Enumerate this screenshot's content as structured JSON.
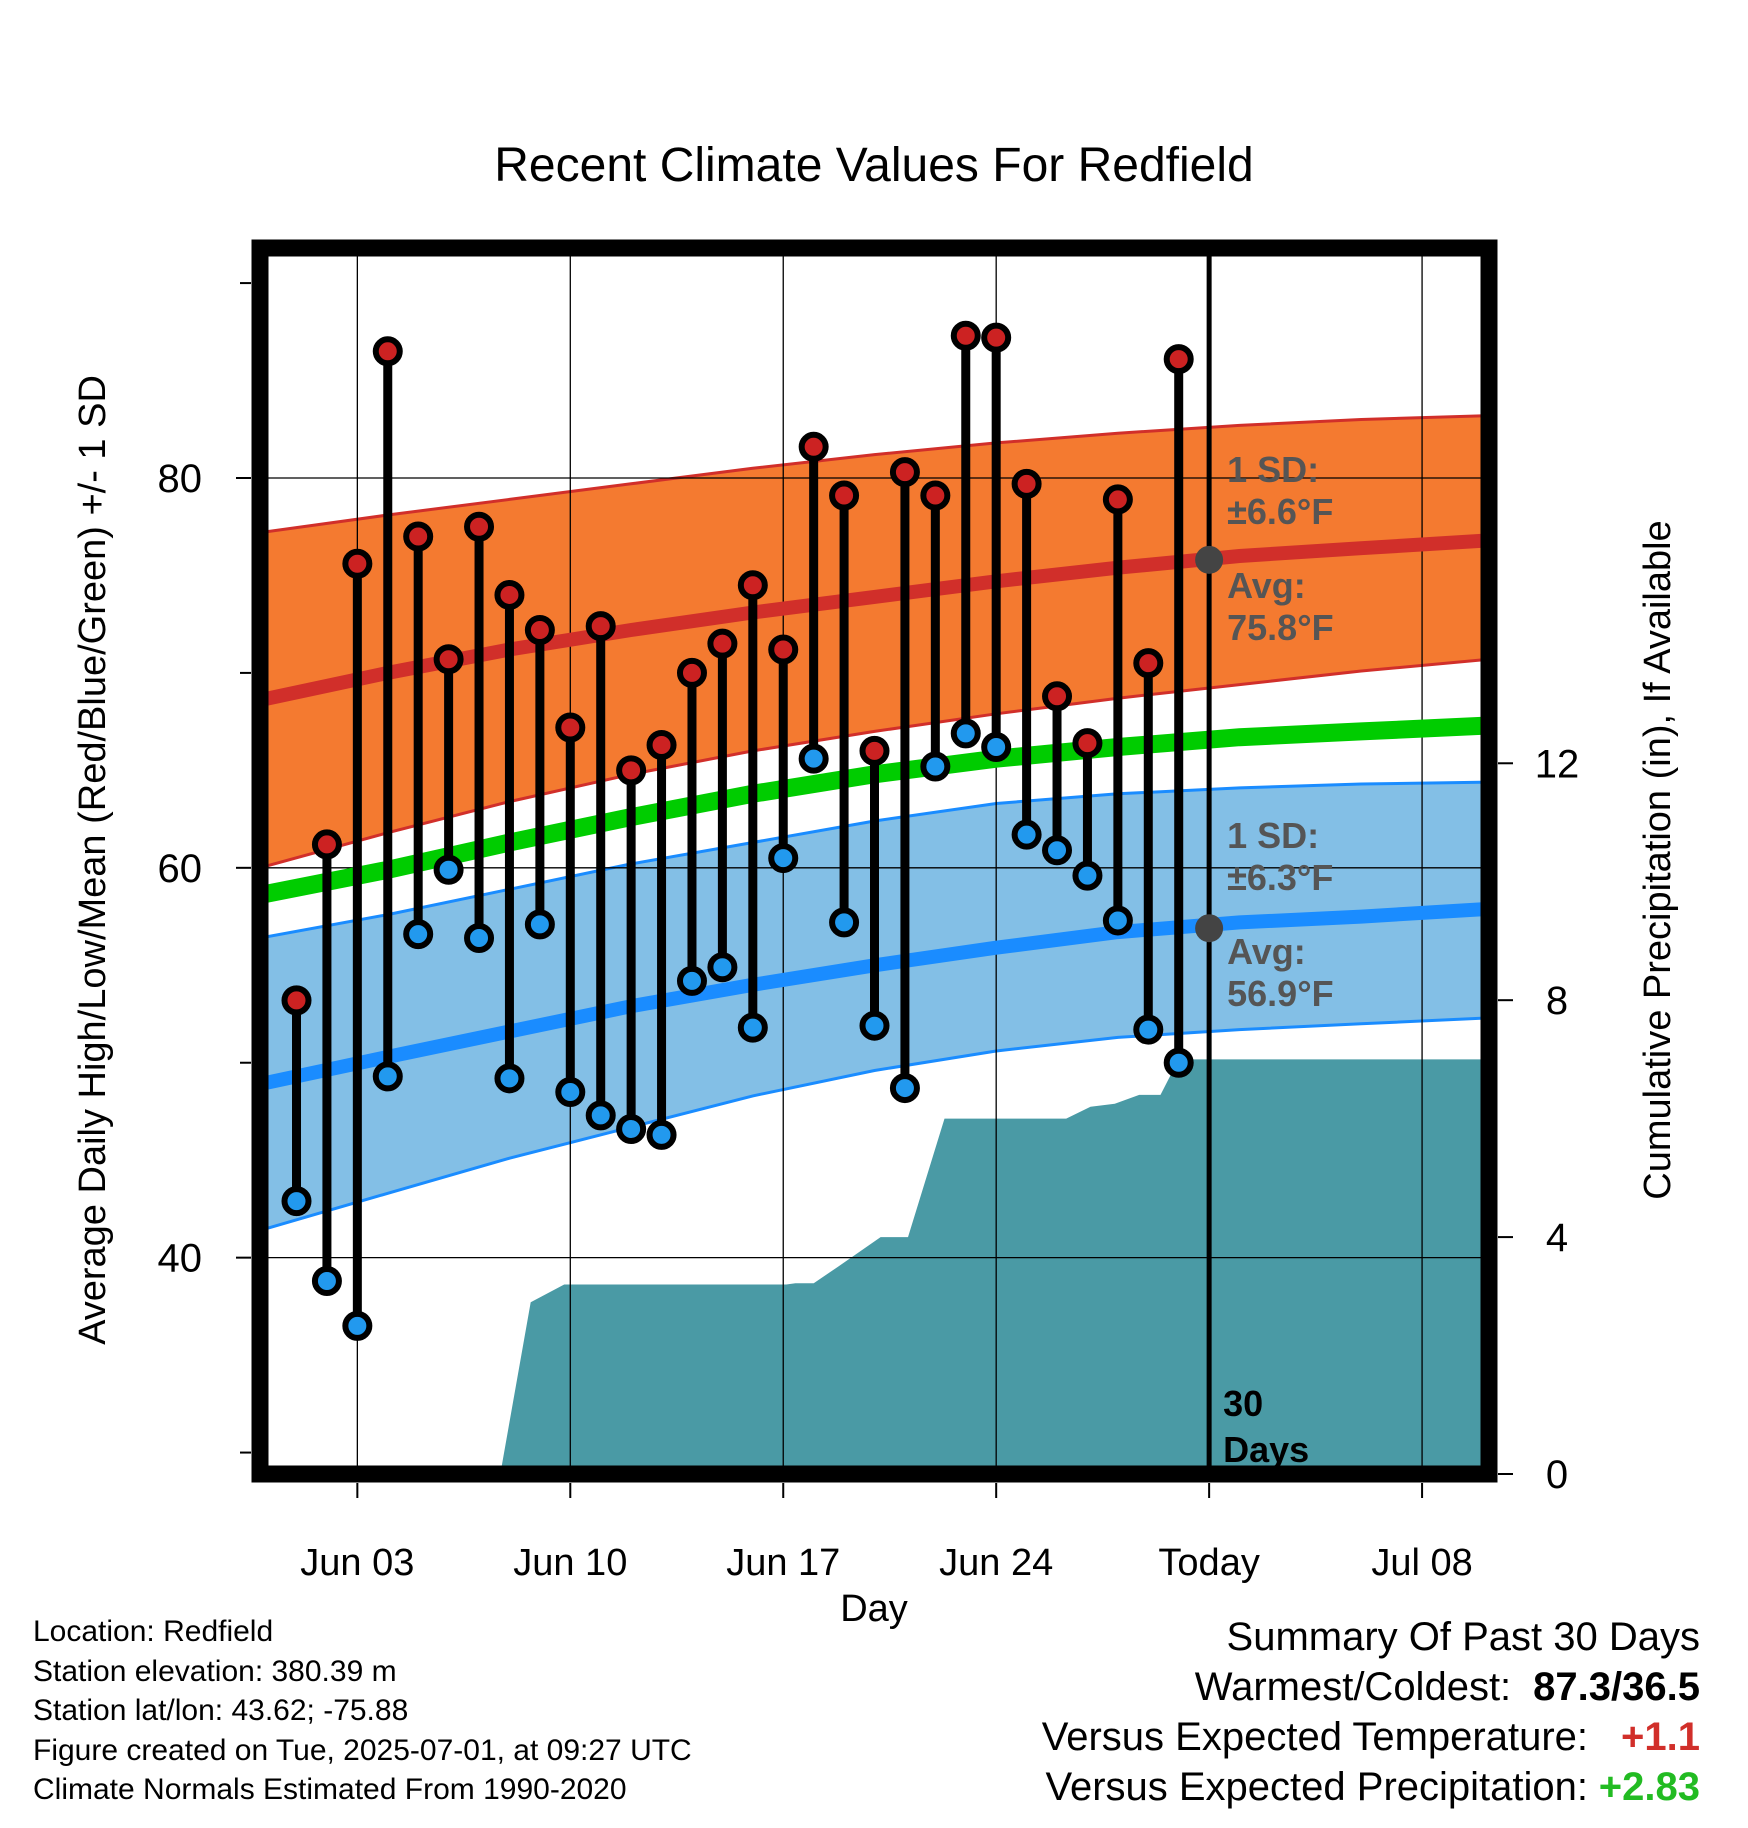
{
  "chart_data": {
    "type": "range-bar",
    "title": "Recent Climate Values For Redfield",
    "xlabel": "Day",
    "ylabel": "Average Daily High/Low/Mean (Red/Blue/Green) +/- 1 SD",
    "y2label": "Cumulative Precipitation (in), If Available",
    "x_tick_labels": [
      "Jun 03",
      "Jun 10",
      "Jun 17",
      "Jun 24",
      "Today",
      "Jul 08"
    ],
    "x_tick_days": [
      3,
      10,
      17,
      24,
      31,
      38
    ],
    "xlim": [
      -0.2,
      40.2
    ],
    "ylim": [
      28.9,
      91.8
    ],
    "y_tick_labels": [
      "40",
      "60",
      "80"
    ],
    "y_ticks": [
      40,
      60,
      80
    ],
    "y_minor_ticks": [
      30,
      50,
      70,
      90
    ],
    "y2lim": [
      0,
      20.7
    ],
    "y2_tick_labels": [
      "0",
      "4",
      "8",
      "12"
    ],
    "y2_ticks": [
      0,
      4,
      8,
      12
    ],
    "grid": true,
    "today_day": 31,
    "today_label": "30\nDays",
    "days": [
      1,
      2,
      3,
      4,
      5,
      6,
      7,
      8,
      9,
      10,
      11,
      12,
      13,
      14,
      15,
      16,
      17,
      18,
      19,
      20,
      21,
      22,
      23,
      24,
      25,
      26,
      27,
      28,
      29,
      30
    ],
    "highs": [
      53.2,
      61.2,
      75.6,
      86.5,
      77.0,
      70.7,
      77.5,
      74.0,
      72.2,
      67.2,
      72.4,
      65.0,
      66.3,
      70.0,
      71.5,
      74.5,
      71.2,
      81.6,
      79.1,
      66.0,
      80.3,
      79.1,
      87.3,
      87.2,
      79.7,
      68.8,
      66.4,
      78.9,
      70.5,
      86.1
    ],
    "lows": [
      42.9,
      38.8,
      36.5,
      49.3,
      56.6,
      59.9,
      56.4,
      49.2,
      57.1,
      48.5,
      47.3,
      46.6,
      46.3,
      54.2,
      54.9,
      51.8,
      60.5,
      65.6,
      57.2,
      51.9,
      48.7,
      65.2,
      66.9,
      66.2,
      61.7,
      60.9,
      59.6,
      57.3,
      51.7,
      50.0
    ],
    "normal_days": [
      -0.2,
      4,
      8,
      12,
      16,
      20,
      24,
      28,
      32,
      36,
      40.2
    ],
    "normal_high": [
      68.6,
      70.0,
      71.2,
      72.2,
      73.1,
      73.9,
      74.7,
      75.4,
      76.0,
      76.4,
      76.8
    ],
    "normal_high_upper": [
      77.2,
      78.1,
      78.9,
      79.7,
      80.5,
      81.2,
      81.8,
      82.3,
      82.7,
      83.0,
      83.2
    ],
    "normal_high_lower": [
      60.0,
      61.8,
      63.4,
      64.8,
      66.0,
      67.0,
      67.9,
      68.7,
      69.4,
      70.1,
      70.7
    ],
    "normal_mean": [
      58.6,
      59.9,
      61.3,
      62.6,
      63.8,
      64.8,
      65.6,
      66.2,
      66.7,
      67.0,
      67.3
    ],
    "normal_low": [
      48.9,
      50.3,
      51.6,
      52.9,
      54.0,
      55.0,
      55.9,
      56.7,
      57.2,
      57.5,
      57.9
    ],
    "normal_low_upper": [
      56.4,
      57.6,
      58.9,
      60.2,
      61.3,
      62.4,
      63.3,
      63.8,
      64.1,
      64.3,
      64.4
    ],
    "normal_low_lower": [
      41.4,
      43.3,
      45.1,
      46.7,
      48.3,
      49.6,
      50.6,
      51.3,
      51.7,
      52.0,
      52.3
    ],
    "precip_days": [
      7.7,
      8.7,
      9.8,
      13,
      17.1,
      17.4,
      18,
      18.8,
      20.2,
      21.1,
      22.3,
      24.0,
      25.1,
      26.3,
      27.1,
      27.9,
      28.7,
      29.4,
      30.0,
      40.2
    ],
    "precip_cum": [
      0,
      2.9,
      3.2,
      3.2,
      3.2,
      3.22,
      3.22,
      3.5,
      4.0,
      4.0,
      6.0,
      6.0,
      6.0,
      6.0,
      6.2,
      6.25,
      6.4,
      6.4,
      7.0,
      7.0
    ],
    "annotations": {
      "high_sd": "1 SD:\n±6.6°F",
      "high_avg": "Avg:\n75.8°F",
      "low_sd": "1 SD:\n±6.3°F",
      "low_avg": "Avg:\n56.9°F",
      "today_high_avg": 75.8,
      "today_low_avg": 56.9
    },
    "colors": {
      "high_band": "#f47a30",
      "high_line": "#d12f2a",
      "mean_line": "#00cc00",
      "low_band": "#83bfe6",
      "low_line": "#1a8cff",
      "precip": "#4a9aa5",
      "high_dot": "#cc2222",
      "low_dot": "#2299ee",
      "annot_text": "#555555",
      "avg_marker": "#444444"
    }
  },
  "footer": {
    "location": "Location: Redfield",
    "elevation": "Station elevation: 380.39 m",
    "latlon": "Station lat/lon: 43.62; -75.88",
    "created": "Figure created on Tue, 2025-07-01, at 09:27 UTC",
    "normals": "Climate Normals Estimated From 1990-2020"
  },
  "summary": {
    "heading": "Summary Of Past 30 Days",
    "warm_cold_label": "Warmest/Coldest:",
    "warm_cold_value": "87.3/36.5",
    "temp_label": "Versus Expected Temperature:",
    "temp_value": "+1.1",
    "temp_color": "#d12f2a",
    "precip_label": "Versus Expected Precipitation:",
    "precip_value": "+2.83",
    "precip_color": "#22bb22"
  }
}
